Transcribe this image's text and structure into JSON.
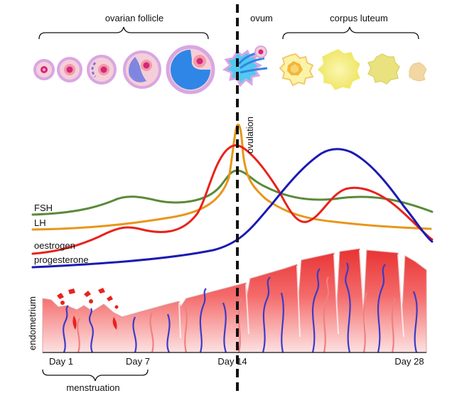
{
  "phases": {
    "ovarian_follicle": "ovarian follicle",
    "ovum": "ovum",
    "corpus_luteum": "corpus luteum"
  },
  "event_label": "ovulation",
  "hormones": {
    "fsh": "FSH",
    "lh": "LH",
    "oestrogen": "oestrogen",
    "progesterone": "progesterone"
  },
  "tissue_label": "endometrium",
  "days": {
    "day1": "Day 1",
    "day7": "Day 7",
    "day14": "Day 14",
    "day28": "Day 28"
  },
  "menstruation_label": "menstruation",
  "colors": {
    "fsh": "#5a8a3a",
    "lh": "#e8961a",
    "oestrogen": "#e8221c",
    "progesterone": "#1a1ab4",
    "follicle_outer": "#d9a6e3",
    "follicle_fill": "#f4cfd9",
    "ovum_core": "#d6267a",
    "antrum": "#2f86e6",
    "corpus_luteum": "#f4ee8a",
    "endometrium": "#e43a3a"
  }
}
